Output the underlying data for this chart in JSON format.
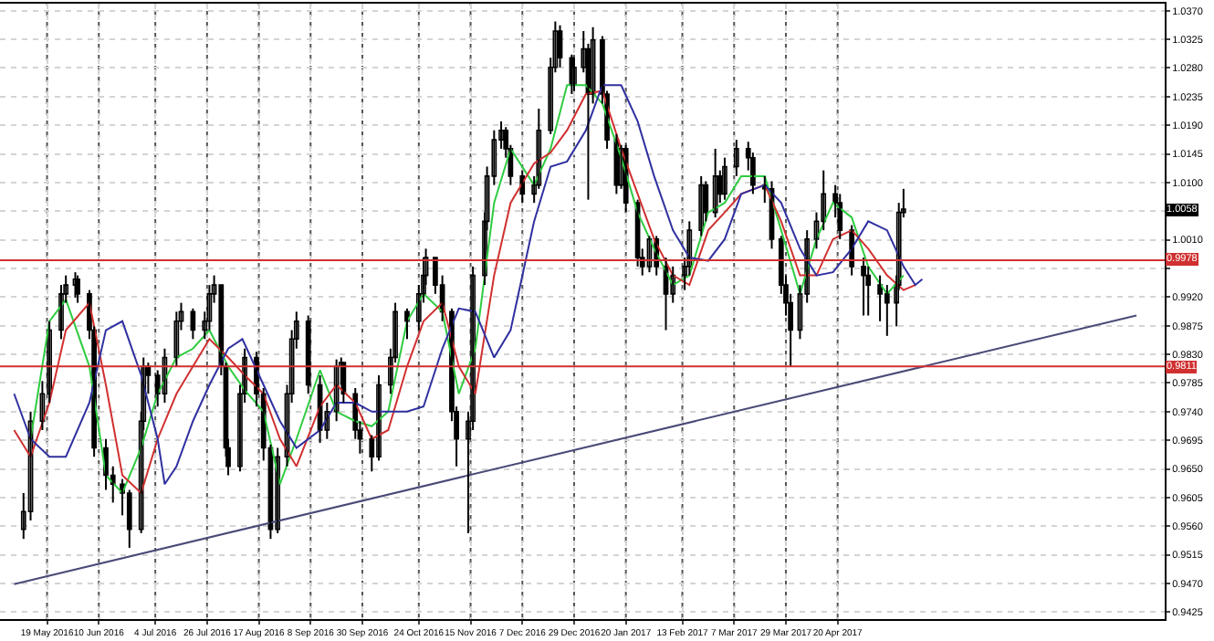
{
  "chart_data": {
    "type": "candlestick",
    "color": "#000000",
    "x": [
      "2016-05-09",
      "2016-05-12",
      "2016-05-17",
      "2016-05-20",
      "2016-05-25",
      "2016-05-27",
      "2016-05-31",
      "2016-06-01",
      "2016-06-06",
      "2016-06-08",
      "2016-06-13",
      "2016-06-16",
      "2016-06-20",
      "2016-06-23",
      "2016-06-28",
      "2016-06-29",
      "2016-07-01",
      "2016-07-05",
      "2016-07-08",
      "2016-07-13",
      "2016-07-15",
      "2016-07-20",
      "2016-07-25",
      "2016-07-27",
      "2016-07-29",
      "2016-08-01",
      "2016-08-03",
      "2016-08-04",
      "2016-08-09",
      "2016-08-11",
      "2016-08-16",
      "2016-08-19",
      "2016-08-22",
      "2016-08-25",
      "2016-08-29",
      "2016-08-31",
      "2016-09-02",
      "2016-09-07",
      "2016-09-12",
      "2016-09-15",
      "2016-09-19",
      "2016-09-21",
      "2016-09-22",
      "2016-09-27",
      "2016-09-29",
      "2016-10-04",
      "2016-10-07",
      "2016-10-12",
      "2016-10-14",
      "2016-10-19",
      "2016-10-24",
      "2016-10-26",
      "2016-10-27",
      "2016-10-31",
      "2016-11-03",
      "2016-11-07",
      "2016-11-09",
      "2016-11-14",
      "2016-11-16",
      "2016-11-21",
      "2016-11-22",
      "2016-11-25",
      "2016-11-28",
      "2016-11-30",
      "2016-12-02",
      "2016-12-07",
      "2016-12-12",
      "2016-12-14",
      "2016-12-19",
      "2016-12-21",
      "2016-12-23",
      "2016-12-28",
      "2016-12-29",
      "2017-01-02",
      "2017-01-04",
      "2017-01-06",
      "2017-01-10",
      "2017-01-12",
      "2017-01-16",
      "2017-01-18",
      "2017-01-20",
      "2017-01-25",
      "2017-01-27",
      "2017-01-30",
      "2017-02-02",
      "2017-02-06",
      "2017-02-09",
      "2017-02-14",
      "2017-02-16",
      "2017-02-21",
      "2017-02-23",
      "2017-02-27",
      "2017-03-01",
      "2017-03-03",
      "2017-03-08",
      "2017-03-13",
      "2017-03-15",
      "2017-03-20",
      "2017-03-23",
      "2017-03-27",
      "2017-03-29",
      "2017-03-31",
      "2017-04-04",
      "2017-04-07",
      "2017-04-11",
      "2017-04-14",
      "2017-04-19",
      "2017-04-21",
      "2017-04-26",
      "2017-05-01",
      "2017-05-03",
      "2017-05-08",
      "2017-05-11",
      "2017-05-15",
      "2017-05-16",
      "2017-05-18"
    ],
    "ohlc": [
      [
        0.9555,
        0.9612,
        0.954,
        0.9583
      ],
      [
        0.9583,
        0.974,
        0.9569,
        0.9725
      ],
      [
        0.9725,
        0.9788,
        0.9711,
        0.9768
      ],
      [
        0.9768,
        0.9882,
        0.9754,
        0.9868
      ],
      [
        0.9868,
        0.9939,
        0.9854,
        0.9925
      ],
      [
        0.9925,
        0.9954,
        0.9911,
        0.9939
      ],
      [
        0.9939,
        0.9959,
        0.9919,
        0.9948
      ],
      [
        0.9948,
        0.9954,
        0.9911,
        0.9925
      ],
      [
        0.9925,
        0.9931,
        0.9854,
        0.9868
      ],
      [
        0.9868,
        0.9874,
        0.9669,
        0.9683
      ],
      [
        0.9683,
        0.9697,
        0.9617,
        0.964
      ],
      [
        0.964,
        0.9654,
        0.9597,
        0.9626
      ],
      [
        0.9626,
        0.9634,
        0.9577,
        0.9612
      ],
      [
        0.9612,
        0.9617,
        0.9526,
        0.9555
      ],
      [
        0.9555,
        0.974,
        0.9549,
        0.9725
      ],
      [
        0.9725,
        0.9825,
        0.9711,
        0.9811
      ],
      [
        0.9811,
        0.9817,
        0.9768,
        0.9797
      ],
      [
        0.9797,
        0.9805,
        0.9748,
        0.9768
      ],
      [
        0.9768,
        0.9839,
        0.9754,
        0.9825
      ],
      [
        0.9825,
        0.9897,
        0.9811,
        0.9882
      ],
      [
        0.9882,
        0.9911,
        0.9868,
        0.9897
      ],
      [
        0.9897,
        0.9902,
        0.9854,
        0.9868
      ],
      [
        0.9868,
        0.9897,
        0.9854,
        0.9882
      ],
      [
        0.9882,
        0.9939,
        0.9868,
        0.9925
      ],
      [
        0.9925,
        0.9954,
        0.9911,
        0.9939
      ],
      [
        0.9939,
        0.9939,
        0.9797,
        0.9811
      ],
      [
        0.9811,
        0.9817,
        0.9669,
        0.9683
      ],
      [
        0.9683,
        0.9697,
        0.964,
        0.9654
      ],
      [
        0.9654,
        0.9782,
        0.9646,
        0.9768
      ],
      [
        0.9768,
        0.9839,
        0.9754,
        0.9825
      ],
      [
        0.9825,
        0.9834,
        0.9748,
        0.9768
      ],
      [
        0.9768,
        0.9777,
        0.9663,
        0.9683
      ],
      [
        0.9683,
        0.9688,
        0.954,
        0.9555
      ],
      [
        0.9555,
        0.9683,
        0.9549,
        0.9669
      ],
      [
        0.9669,
        0.9782,
        0.9654,
        0.9768
      ],
      [
        0.9768,
        0.9868,
        0.9754,
        0.9854
      ],
      [
        0.9854,
        0.9897,
        0.9839,
        0.9882
      ],
      [
        0.9882,
        0.9891,
        0.9768,
        0.9782
      ],
      [
        0.9782,
        0.9797,
        0.9691,
        0.9711
      ],
      [
        0.9711,
        0.9754,
        0.9697,
        0.974
      ],
      [
        0.974,
        0.9822,
        0.9725,
        0.9811
      ],
      [
        0.9811,
        0.9825,
        0.9782,
        0.9817
      ],
      [
        0.9817,
        0.9817,
        0.9754,
        0.9768
      ],
      [
        0.9768,
        0.9777,
        0.9697,
        0.9711
      ],
      [
        0.9711,
        0.9725,
        0.9674,
        0.9697
      ],
      [
        0.9697,
        0.9703,
        0.9646,
        0.9669
      ],
      [
        0.9669,
        0.9797,
        0.9663,
        0.9782
      ],
      [
        0.9782,
        0.9839,
        0.9768,
        0.9825
      ],
      [
        0.9825,
        0.9911,
        0.9817,
        0.9897
      ],
      [
        0.9897,
        0.9902,
        0.9854,
        0.9882
      ],
      [
        0.9882,
        0.9939,
        0.9868,
        0.9925
      ],
      [
        0.9925,
        0.9982,
        0.9911,
        0.9954
      ],
      [
        0.9954,
        0.9996,
        0.9939,
        0.9982
      ],
      [
        0.9982,
        0.9982,
        0.9925,
        0.9939
      ],
      [
        0.9939,
        0.9954,
        0.9882,
        0.9897
      ],
      [
        0.9897,
        0.9902,
        0.9725,
        0.974
      ],
      [
        0.974,
        0.9748,
        0.9654,
        0.9697
      ],
      [
        0.9697,
        0.974,
        0.9549,
        0.9725
      ],
      [
        0.9725,
        0.9968,
        0.9711,
        0.9954
      ],
      [
        0.9954,
        1.0053,
        0.9939,
        1.0039
      ],
      [
        1.0039,
        1.0125,
        1.0025,
        1.011
      ],
      [
        1.011,
        1.0182,
        1.0096,
        1.0167
      ],
      [
        1.0167,
        1.0196,
        1.0153,
        1.0182
      ],
      [
        1.0182,
        1.0187,
        1.0139,
        1.0153
      ],
      [
        1.0153,
        1.0159,
        1.0096,
        1.011
      ],
      [
        1.011,
        1.0119,
        1.0068,
        1.0082
      ],
      [
        1.0082,
        1.011,
        1.0068,
        1.0096
      ],
      [
        1.0096,
        1.0216,
        1.009,
        1.0182
      ],
      [
        1.0182,
        1.0296,
        1.0176,
        1.0281
      ],
      [
        1.0281,
        1.0353,
        1.0273,
        1.0338
      ],
      [
        1.0338,
        1.0347,
        1.0281,
        1.0296
      ],
      [
        1.0296,
        1.0301,
        1.0239,
        1.0253
      ],
      [
        1.0253,
        1.0296,
        1.0244,
        1.0281
      ],
      [
        1.0281,
        1.0338,
        1.0273,
        1.031
      ],
      [
        1.031,
        1.0318,
        1.0073,
        1.0239
      ],
      [
        1.0239,
        1.0344,
        1.0224,
        1.0324
      ],
      [
        1.0324,
        1.033,
        1.0224,
        1.0239
      ],
      [
        1.0239,
        1.0244,
        1.0153,
        1.0167
      ],
      [
        1.0167,
        1.0176,
        1.0082,
        1.0096
      ],
      [
        1.0096,
        1.0159,
        1.009,
        1.0153
      ],
      [
        1.0153,
        1.0159,
        1.0053,
        1.0068
      ],
      [
        1.0068,
        1.0073,
        0.9968,
        0.9982
      ],
      [
        0.9982,
        0.9996,
        0.9954,
        0.9968
      ],
      [
        0.9968,
        1.0016,
        0.9959,
        1.0011
      ],
      [
        1.0011,
        1.0016,
        0.9954,
        0.9968
      ],
      [
        0.9968,
        0.9982,
        0.9868,
        0.9925
      ],
      [
        0.9925,
        0.9968,
        0.9911,
        0.9954
      ],
      [
        0.9954,
        0.9982,
        0.9931,
        0.9968
      ],
      [
        0.9968,
        1.0039,
        0.9954,
        1.0025
      ],
      [
        1.0025,
        1.011,
        1.0016,
        1.0096
      ],
      [
        1.0096,
        1.0102,
        1.0039,
        1.0053
      ],
      [
        1.0053,
        1.0153,
        1.0045,
        1.011
      ],
      [
        1.011,
        1.0119,
        1.0068,
        1.0082
      ],
      [
        1.0082,
        1.0139,
        1.0073,
        1.0125
      ],
      [
        1.0125,
        1.0167,
        1.011,
        1.0153
      ],
      [
        1.0153,
        1.0164,
        1.0119,
        1.0139
      ],
      [
        1.0139,
        1.0147,
        1.0082,
        1.0096
      ],
      [
        1.0096,
        1.011,
        1.0068,
        1.009
      ],
      [
        1.009,
        1.0102,
        0.9996,
        1.0011
      ],
      [
        1.0011,
        1.0016,
        0.9925,
        0.9939
      ],
      [
        0.9939,
        0.9954,
        0.9891,
        0.9911
      ],
      [
        0.9911,
        0.9925,
        0.9811,
        0.9868
      ],
      [
        0.9868,
        0.9939,
        0.9854,
        0.9925
      ],
      [
        0.9925,
        1.0025,
        0.9911,
        1.0011
      ],
      [
        1.0011,
        1.0053,
        0.9996,
        1.0039
      ],
      [
        1.0039,
        1.0119,
        1.0025,
        1.0082
      ],
      [
        1.0082,
        1.0096,
        1.0045,
        1.0068
      ],
      [
        1.0068,
        1.0082,
        1.0011,
        1.0025
      ],
      [
        1.0025,
        1.0033,
        0.9954,
        0.9968
      ],
      [
        0.9968,
        0.9982,
        0.9891,
        0.9954
      ],
      [
        0.9954,
        0.9968,
        0.9891,
        0.9939
      ],
      [
        0.9939,
        0.9954,
        0.9882,
        0.9925
      ],
      [
        0.9925,
        0.9939,
        0.9859,
        0.9911
      ],
      [
        0.9911,
        0.9954,
        0.9874,
        0.9939
      ],
      [
        0.9939,
        1.0068,
        0.9931,
        1.0053
      ],
      [
        1.0053,
        1.009,
        1.0045,
        1.0058
      ]
    ],
    "series": [
      {
        "type": "line",
        "color": "#2ecc40",
        "x": [
          "2016-05-12",
          "2016-05-20",
          "2016-05-27",
          "2016-06-06",
          "2016-06-13",
          "2016-06-20",
          "2016-06-28",
          "2016-07-05",
          "2016-07-13",
          "2016-07-20",
          "2016-07-27",
          "2016-08-04",
          "2016-08-11",
          "2016-08-19",
          "2016-08-26",
          "2016-09-02",
          "2016-09-12",
          "2016-09-19",
          "2016-09-27",
          "2016-10-04",
          "2016-10-11",
          "2016-10-19",
          "2016-10-26",
          "2016-11-03",
          "2016-11-10",
          "2016-11-17",
          "2016-11-25",
          "2016-12-02",
          "2016-12-12",
          "2016-12-19",
          "2016-12-26",
          "2017-01-03",
          "2017-01-10",
          "2017-01-18",
          "2017-01-25",
          "2017-02-01",
          "2017-02-09",
          "2017-02-16",
          "2017-02-24",
          "2017-03-03",
          "2017-03-10",
          "2017-03-20",
          "2017-03-27",
          "2017-04-04",
          "2017-04-11",
          "2017-04-18",
          "2017-04-26",
          "2017-05-03",
          "2017-05-11",
          "2017-05-18"
        ],
        "values": [
          0.9697,
          0.9882,
          0.9916,
          0.9811,
          0.964,
          0.9612,
          0.9683,
          0.9768,
          0.9825,
          0.9839,
          0.9868,
          0.9811,
          0.9774,
          0.974,
          0.9626,
          0.9697,
          0.9805,
          0.974,
          0.9725,
          0.9717,
          0.974,
          0.9882,
          0.9925,
          0.9897,
          0.9768,
          0.9839,
          1.0068,
          1.0153,
          1.0096,
          1.0153,
          1.0253,
          1.0253,
          1.0224,
          1.0139,
          1.0053,
          0.9996,
          0.9939,
          0.9954,
          1.0053,
          1.0068,
          1.011,
          1.011,
          1.0025,
          0.9925,
          1.0011,
          1.0068,
          1.0045,
          0.9968,
          0.9925,
          0.9954
        ]
      },
      {
        "type": "line",
        "color": "#d03030",
        "x": [
          "2016-05-05",
          "2016-05-12",
          "2016-05-20",
          "2016-05-27",
          "2016-06-06",
          "2016-06-13",
          "2016-06-20",
          "2016-06-28",
          "2016-07-05",
          "2016-07-13",
          "2016-07-20",
          "2016-07-27",
          "2016-08-04",
          "2016-08-11",
          "2016-08-19",
          "2016-08-26",
          "2016-09-02",
          "2016-09-12",
          "2016-09-19",
          "2016-09-27",
          "2016-10-04",
          "2016-10-11",
          "2016-10-19",
          "2016-10-26",
          "2016-11-03",
          "2016-11-10",
          "2016-11-17",
          "2016-11-25",
          "2016-12-02",
          "2016-12-12",
          "2016-12-19",
          "2016-12-26",
          "2017-01-03",
          "2017-01-10",
          "2017-01-18",
          "2017-01-25",
          "2017-02-01",
          "2017-02-09",
          "2017-02-16",
          "2017-02-24",
          "2017-03-03",
          "2017-03-10",
          "2017-03-20",
          "2017-03-27",
          "2017-04-04",
          "2017-04-11",
          "2017-04-18",
          "2017-04-26",
          "2017-05-03",
          "2017-05-11",
          "2017-05-18",
          "2017-05-23"
        ],
        "values": [
          0.9711,
          0.9669,
          0.9754,
          0.9868,
          0.9911,
          0.9782,
          0.964,
          0.9612,
          0.9697,
          0.9768,
          0.9811,
          0.9854,
          0.9825,
          0.9797,
          0.9768,
          0.9697,
          0.9654,
          0.9748,
          0.9782,
          0.9754,
          0.9697,
          0.9711,
          0.9811,
          0.9882,
          0.9911,
          0.9811,
          0.9768,
          0.9954,
          1.0068,
          1.013,
          1.0147,
          1.0182,
          1.0239,
          1.0244,
          1.0153,
          1.0082,
          1.0011,
          0.9954,
          0.9939,
          1.0025,
          1.0053,
          1.0082,
          1.0096,
          1.0039,
          0.9954,
          0.9954,
          1.0011,
          1.0025,
          0.9996,
          0.9954,
          0.9931,
          0.9939
        ]
      },
      {
        "type": "line",
        "color": "#3030a0",
        "x": [
          "2016-05-05",
          "2016-05-12",
          "2016-05-20",
          "2016-05-27",
          "2016-06-06",
          "2016-06-13",
          "2016-06-20",
          "2016-06-28",
          "2016-07-05",
          "2016-07-08",
          "2016-07-13",
          "2016-07-20",
          "2016-07-27",
          "2016-08-04",
          "2016-08-10",
          "2016-08-19",
          "2016-08-26",
          "2016-09-02",
          "2016-09-12",
          "2016-09-19",
          "2016-09-27",
          "2016-10-04",
          "2016-10-11",
          "2016-10-19",
          "2016-10-26",
          "2016-11-03",
          "2016-11-10",
          "2016-11-17",
          "2016-11-25",
          "2016-12-02",
          "2016-12-12",
          "2016-12-19",
          "2016-12-26",
          "2017-01-03",
          "2017-01-10",
          "2017-01-18",
          "2017-01-25",
          "2017-02-01",
          "2017-02-09",
          "2017-02-16",
          "2017-02-24",
          "2017-03-03",
          "2017-03-10",
          "2017-03-20",
          "2017-03-27",
          "2017-04-04",
          "2017-04-11",
          "2017-04-18",
          "2017-04-26",
          "2017-05-03",
          "2017-05-11",
          "2017-05-18",
          "2017-05-23",
          "2017-05-26"
        ],
        "values": [
          0.9768,
          0.9697,
          0.9669,
          0.9669,
          0.9754,
          0.9868,
          0.9882,
          0.9797,
          0.9697,
          0.9626,
          0.9654,
          0.9725,
          0.9782,
          0.9839,
          0.9854,
          0.9782,
          0.9725,
          0.9683,
          0.9711,
          0.9754,
          0.9754,
          0.974,
          0.974,
          0.974,
          0.9748,
          0.9839,
          0.9902,
          0.9897,
          0.9825,
          0.9868,
          1.0039,
          1.0125,
          1.0133,
          1.0182,
          1.0253,
          1.0253,
          1.0196,
          1.011,
          1.0025,
          0.9982,
          0.9977,
          1.0011,
          1.0082,
          1.0096,
          1.0068,
          0.9996,
          0.9954,
          0.9959,
          0.9996,
          1.0039,
          1.0025,
          0.9968,
          0.9939,
          0.9948
        ]
      },
      {
        "type": "line",
        "color": "#4a4a78",
        "x": [
          "2016-05-05",
          "2017-08-25"
        ],
        "values": [
          0.9469,
          0.9891
        ]
      }
    ],
    "ref_lines": [
      {
        "axis": "y",
        "value": 0.9978,
        "label": "0.9978",
        "color": "#d03030"
      },
      {
        "axis": "y",
        "value": 0.9811,
        "label": "0.9811",
        "color": "#d03030"
      }
    ],
    "annotations": [
      {
        "text": "1.0058",
        "y": 1.0058
      }
    ],
    "xlim": [
      "2016-04-29",
      "2017-09-06"
    ],
    "xticks": [
      {
        "value": "2016-05-19",
        "label": "19 May 2016"
      },
      {
        "value": "2016-06-10",
        "label": "10 Jun 2016"
      },
      {
        "value": "2016-07-04",
        "label": "4 Jul 2016"
      },
      {
        "value": "2016-07-26",
        "label": "26 Jul 2016"
      },
      {
        "value": "2016-08-17",
        "label": "17 Aug 2016"
      },
      {
        "value": "2016-09-08",
        "label": "8 Sep 2016"
      },
      {
        "value": "2016-09-30",
        "label": "30 Sep 2016"
      },
      {
        "value": "2016-10-24",
        "label": "24 Oct 2016"
      },
      {
        "value": "2016-11-15",
        "label": "15 Nov 2016"
      },
      {
        "value": "2016-12-07",
        "label": "7 Dec 2016"
      },
      {
        "value": "2016-12-29",
        "label": "29 Dec 2016"
      },
      {
        "value": "2017-01-20",
        "label": "20 Jan 2017"
      },
      {
        "value": "2017-02-13",
        "label": "13 Feb 2017"
      },
      {
        "value": "2017-03-07",
        "label": "7 Mar 2017"
      },
      {
        "value": "2017-03-29",
        "label": "29 Mar 2017"
      },
      {
        "value": "2017-04-20",
        "label": "20 Apr 2017"
      }
    ],
    "ylim": [
      0.9414,
      1.0381
    ],
    "yticks": [
      {
        "value": 0.9425,
        "label": "0.9425"
      },
      {
        "value": 0.947,
        "label": "0.9470"
      },
      {
        "value": 0.9515,
        "label": "0.9515"
      },
      {
        "value": 0.956,
        "label": "0.9560"
      },
      {
        "value": 0.9605,
        "label": "0.9605"
      },
      {
        "value": 0.965,
        "label": "0.9650"
      },
      {
        "value": 0.9695,
        "label": "0.9695"
      },
      {
        "value": 0.974,
        "label": "0.9740"
      },
      {
        "value": 0.9785,
        "label": "0.9785"
      },
      {
        "value": 0.983,
        "label": "0.9830"
      },
      {
        "value": 0.9875,
        "label": "0.9875"
      },
      {
        "value": 0.992,
        "label": "0.9920"
      },
      {
        "value": 0.9965,
        "label": null
      },
      {
        "value": 1.001,
        "label": "1.0010"
      },
      {
        "value": 1.0055,
        "label": null
      },
      {
        "value": 1.01,
        "label": "1.0100"
      },
      {
        "value": 1.0145,
        "label": "1.0145"
      },
      {
        "value": 1.019,
        "label": "1.0190"
      },
      {
        "value": 1.0235,
        "label": "1.0235"
      },
      {
        "value": 1.028,
        "label": "1.0280"
      },
      {
        "value": 1.0325,
        "label": "1.0325"
      },
      {
        "value": 1.037,
        "label": "1.0370"
      }
    ],
    "grid": true
  }
}
